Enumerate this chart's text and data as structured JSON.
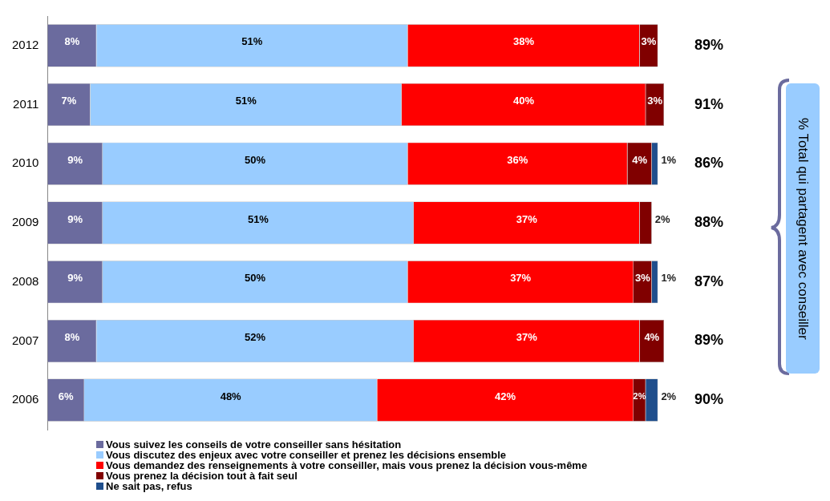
{
  "chart_data": {
    "type": "bar",
    "orientation": "horizontal",
    "stacked": true,
    "categories": [
      "2012",
      "2011",
      "2010",
      "2009",
      "2008",
      "2007",
      "2006"
    ],
    "xlim": [
      0,
      101
    ],
    "tick_labels": "y",
    "legend": "bottom",
    "data_labels": true,
    "series": [
      {
        "name": "Vous suivez les conseils de votre conseiller sans hésitation",
        "color": "#6b6b9e",
        "values": [
          8,
          7,
          9,
          9,
          9,
          8,
          6
        ],
        "value_labels": [
          "8%",
          "7%",
          "9%",
          "9%",
          "9%",
          "8%",
          "6%"
        ]
      },
      {
        "name": "Vous discutez des enjeux avec votre conseiller et prenez les décisions ensemble",
        "color": "#99ccff",
        "values": [
          51,
          51,
          50,
          51,
          50,
          52,
          48
        ],
        "value_labels": [
          "51%",
          "51%",
          "50%",
          "51%",
          "50%",
          "52%",
          "48%"
        ]
      },
      {
        "name": "Vous demandez des renseignements à votre conseiller, mais vous prenez la décision vous-même",
        "color": "#ff0000",
        "values": [
          38,
          40,
          36,
          37,
          37,
          37,
          42
        ],
        "value_labels": [
          "38%",
          "40%",
          "36%",
          "37%",
          "37%",
          "37%",
          "42%"
        ]
      },
      {
        "name": "Vous prenez la décision tout à fait seul",
        "color": "#800000",
        "values": [
          3,
          3,
          4,
          2,
          3,
          4,
          2
        ],
        "value_labels": [
          "3%",
          "3%",
          "4%",
          "2%",
          "3%",
          "4%",
          "2%"
        ]
      },
      {
        "name": "Ne sait pas, refus",
        "color": "#1f4e8c",
        "values": [
          null,
          null,
          1,
          null,
          1,
          null,
          2
        ],
        "value_labels": [
          null,
          null,
          "1%",
          null,
          "1%",
          null,
          "2%"
        ]
      }
    ],
    "annotations": [
      "% Total qui partagent avec conseiller",
      "89%",
      "91%",
      "86%",
      "88%",
      "87%",
      "89%",
      "90%"
    ]
  }
}
